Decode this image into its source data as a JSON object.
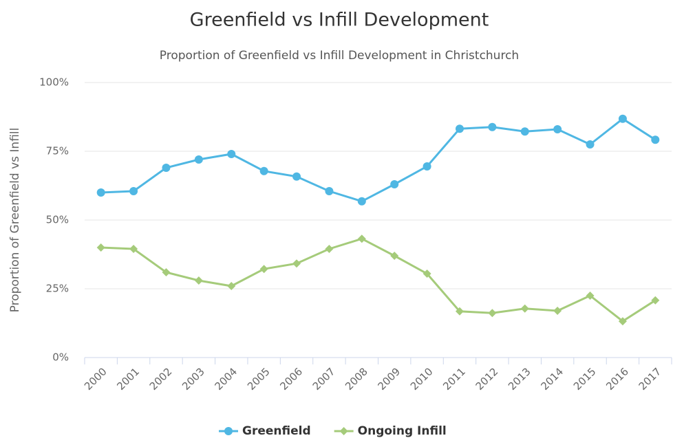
{
  "chart_data": {
    "type": "line",
    "title": "Greenfield vs Infill Development",
    "subtitle": "Proportion of Greenfield vs Infill Development in Christchurch",
    "y_label": "Proportion of Greenfield vs Infill",
    "categories": [
      "2000",
      "2001",
      "2002",
      "2003",
      "2004",
      "2005",
      "2006",
      "2007",
      "2008",
      "2009",
      "2010",
      "2011",
      "2012",
      "2013",
      "2014",
      "2015",
      "2016",
      "2017"
    ],
    "series": [
      {
        "name": "Greenfield",
        "color": "#4fb7e3",
        "marker": "circle",
        "values": [
          60,
          60.5,
          69,
          72,
          74,
          67.8,
          65.8,
          60.5,
          56.8,
          63,
          69.5,
          83.2,
          83.8,
          82.2,
          83,
          77.5,
          86.8,
          79.2
        ]
      },
      {
        "name": "Ongoing Infill",
        "color": "#a5cb7a",
        "marker": "diamond",
        "values": [
          40,
          39.5,
          31,
          28,
          26,
          32.2,
          34.2,
          39.5,
          43.2,
          37,
          30.5,
          16.8,
          16.2,
          17.8,
          17,
          22.5,
          13.2,
          20.8
        ]
      }
    ],
    "ylim": [
      0,
      100
    ],
    "yticks": [
      {
        "value": 0,
        "label": "0%"
      },
      {
        "value": 25,
        "label": "25%"
      },
      {
        "value": 50,
        "label": "50%"
      },
      {
        "value": 75,
        "label": "75%"
      },
      {
        "value": 100,
        "label": "100%"
      }
    ],
    "grid": true,
    "legend": "bottom"
  }
}
